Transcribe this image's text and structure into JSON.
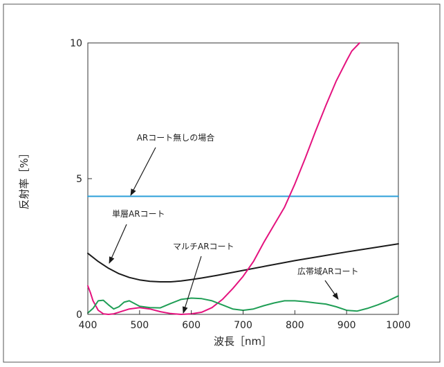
{
  "chart_data": {
    "type": "line",
    "xlabel": "波長［nm］",
    "ylabel": "反射率［%］",
    "xlim": [
      400,
      1000
    ],
    "ylim": [
      0,
      10
    ],
    "x_ticks": [
      "400",
      "500",
      "600",
      "700",
      "800",
      "900",
      "1000"
    ],
    "y_ticks": [
      "0",
      "5",
      "10"
    ],
    "grid": false,
    "series": [
      {
        "name": "ARコート無しの場合",
        "color": "#2b9fd8",
        "x": [
          400,
          1000
        ],
        "y": [
          4.35,
          4.35
        ]
      },
      {
        "name": "単層ARコート",
        "color": "#1a1a1a",
        "x": [
          400,
          420,
          440,
          460,
          480,
          500,
          520,
          540,
          560,
          580,
          600,
          620,
          650,
          700,
          750,
          800,
          850,
          900,
          950,
          1000
        ],
        "y": [
          2.25,
          1.95,
          1.7,
          1.5,
          1.36,
          1.27,
          1.22,
          1.2,
          1.2,
          1.23,
          1.28,
          1.34,
          1.44,
          1.62,
          1.8,
          1.98,
          2.14,
          2.3,
          2.45,
          2.6
        ]
      },
      {
        "name": "マルチARコート",
        "color": "#e4127e",
        "x": [
          400,
          405,
          410,
          420,
          430,
          440,
          450,
          460,
          480,
          500,
          520,
          540,
          560,
          580,
          600,
          620,
          640,
          660,
          680,
          700,
          720,
          740,
          760,
          780,
          800,
          820,
          840,
          860,
          880,
          900,
          910,
          925
        ],
        "y": [
          1.05,
          0.8,
          0.5,
          0.15,
          0.02,
          0.0,
          0.02,
          0.08,
          0.2,
          0.25,
          0.2,
          0.1,
          0.03,
          0.0,
          0.02,
          0.08,
          0.25,
          0.55,
          0.95,
          1.4,
          1.95,
          2.65,
          3.3,
          3.95,
          4.8,
          5.75,
          6.75,
          7.7,
          8.6,
          9.35,
          9.7,
          10.0
        ]
      },
      {
        "name": "広帯域ARコート",
        "color": "#1f9e55",
        "x": [
          400,
          410,
          420,
          430,
          440,
          450,
          460,
          470,
          480,
          490,
          500,
          520,
          540,
          560,
          580,
          600,
          620,
          640,
          660,
          680,
          700,
          720,
          740,
          760,
          780,
          800,
          820,
          840,
          860,
          880,
          900,
          920,
          940,
          960,
          980,
          1000
        ],
        "y": [
          0.05,
          0.22,
          0.5,
          0.52,
          0.35,
          0.2,
          0.28,
          0.45,
          0.5,
          0.4,
          0.3,
          0.25,
          0.24,
          0.4,
          0.55,
          0.6,
          0.58,
          0.5,
          0.35,
          0.2,
          0.15,
          0.2,
          0.32,
          0.42,
          0.5,
          0.5,
          0.47,
          0.42,
          0.38,
          0.28,
          0.15,
          0.12,
          0.22,
          0.35,
          0.5,
          0.68
        ]
      }
    ],
    "annotations": [
      {
        "text": "ARコート無しの場合",
        "series": 0
      },
      {
        "text": "単層ARコート",
        "series": 1
      },
      {
        "text": "マルチARコート",
        "series": 2
      },
      {
        "text": "広帯域ARコート",
        "series": 3
      }
    ]
  }
}
